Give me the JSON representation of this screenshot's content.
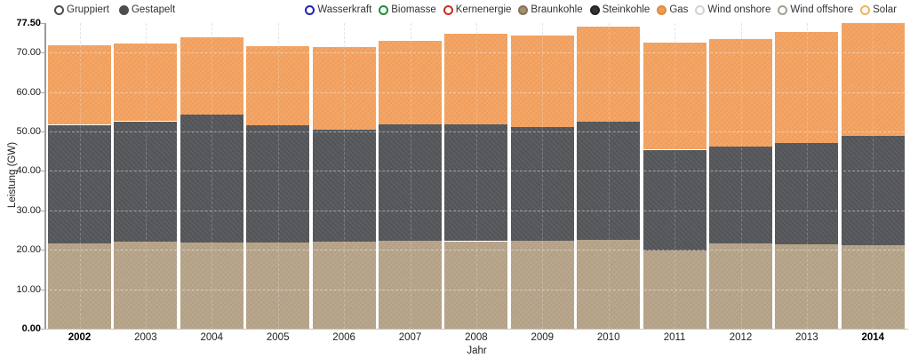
{
  "legend_modes": {
    "items": [
      {
        "label": "Gruppiert",
        "selected": false
      },
      {
        "label": "Gestapelt",
        "selected": true
      }
    ],
    "color": "#4d4d4d"
  },
  "legend_series": [
    {
      "label": "Wasserkraft",
      "color": "#2727cd",
      "border": "#2222b8",
      "active": false
    },
    {
      "label": "Biomasse",
      "color": "#23a638",
      "border": "#1d8f30",
      "active": false
    },
    {
      "label": "Kernenergie",
      "color": "#e63329",
      "border": "#d02a22",
      "active": false
    },
    {
      "label": "Braunkohle",
      "color": "#a5906e",
      "border": "#84725a",
      "active": true
    },
    {
      "label": "Steinkohle",
      "color": "#333333",
      "border": "#222222",
      "active": true
    },
    {
      "label": "Gas",
      "color": "#ee9c55",
      "border": "#e18a3f",
      "active": true
    },
    {
      "label": "Wind onshore",
      "color": "#dcdcdc",
      "border": "#d2d2d2",
      "active": false
    },
    {
      "label": "Wind offshore",
      "color": "#a9b3a1",
      "border": "#9aa492",
      "active": false
    },
    {
      "label": "Solar",
      "color": "#f3bf75",
      "border": "#eeb463",
      "active": false
    }
  ],
  "chart_data": {
    "type": "bar",
    "stacked": true,
    "xlabel": "Jahr",
    "ylabel": "Leistung (GW)",
    "ylim": [
      0,
      77.5
    ],
    "yticks": [
      0,
      10,
      20,
      30,
      40,
      50,
      60,
      70,
      77.5
    ],
    "grid": true,
    "categories": [
      "2002",
      "2003",
      "2004",
      "2005",
      "2006",
      "2007",
      "2008",
      "2009",
      "2010",
      "2011",
      "2012",
      "2013",
      "2014"
    ],
    "series": [
      {
        "name": "Braunkohle",
        "color": "#b7a489",
        "values": [
          21.7,
          22.1,
          21.9,
          21.9,
          22.0,
          22.3,
          22.2,
          22.3,
          22.6,
          19.9,
          21.7,
          21.4,
          21.1
        ]
      },
      {
        "name": "Steinkohle",
        "color": "#54565a",
        "values": [
          30.0,
          30.5,
          32.4,
          29.6,
          28.4,
          29.5,
          29.7,
          28.9,
          30.0,
          25.5,
          24.5,
          25.6,
          27.7
        ]
      },
      {
        "name": "Gas",
        "color": "#f6a360",
        "values": [
          20.1,
          19.7,
          19.5,
          20.2,
          21.0,
          21.2,
          22.8,
          23.2,
          24.1,
          27.2,
          27.3,
          28.3,
          28.6
        ]
      }
    ],
    "totals": [
      71.8,
      72.3,
      73.8,
      71.7,
      71.4,
      73.0,
      74.7,
      74.4,
      76.7,
      72.6,
      73.5,
      75.3,
      77.4
    ]
  }
}
